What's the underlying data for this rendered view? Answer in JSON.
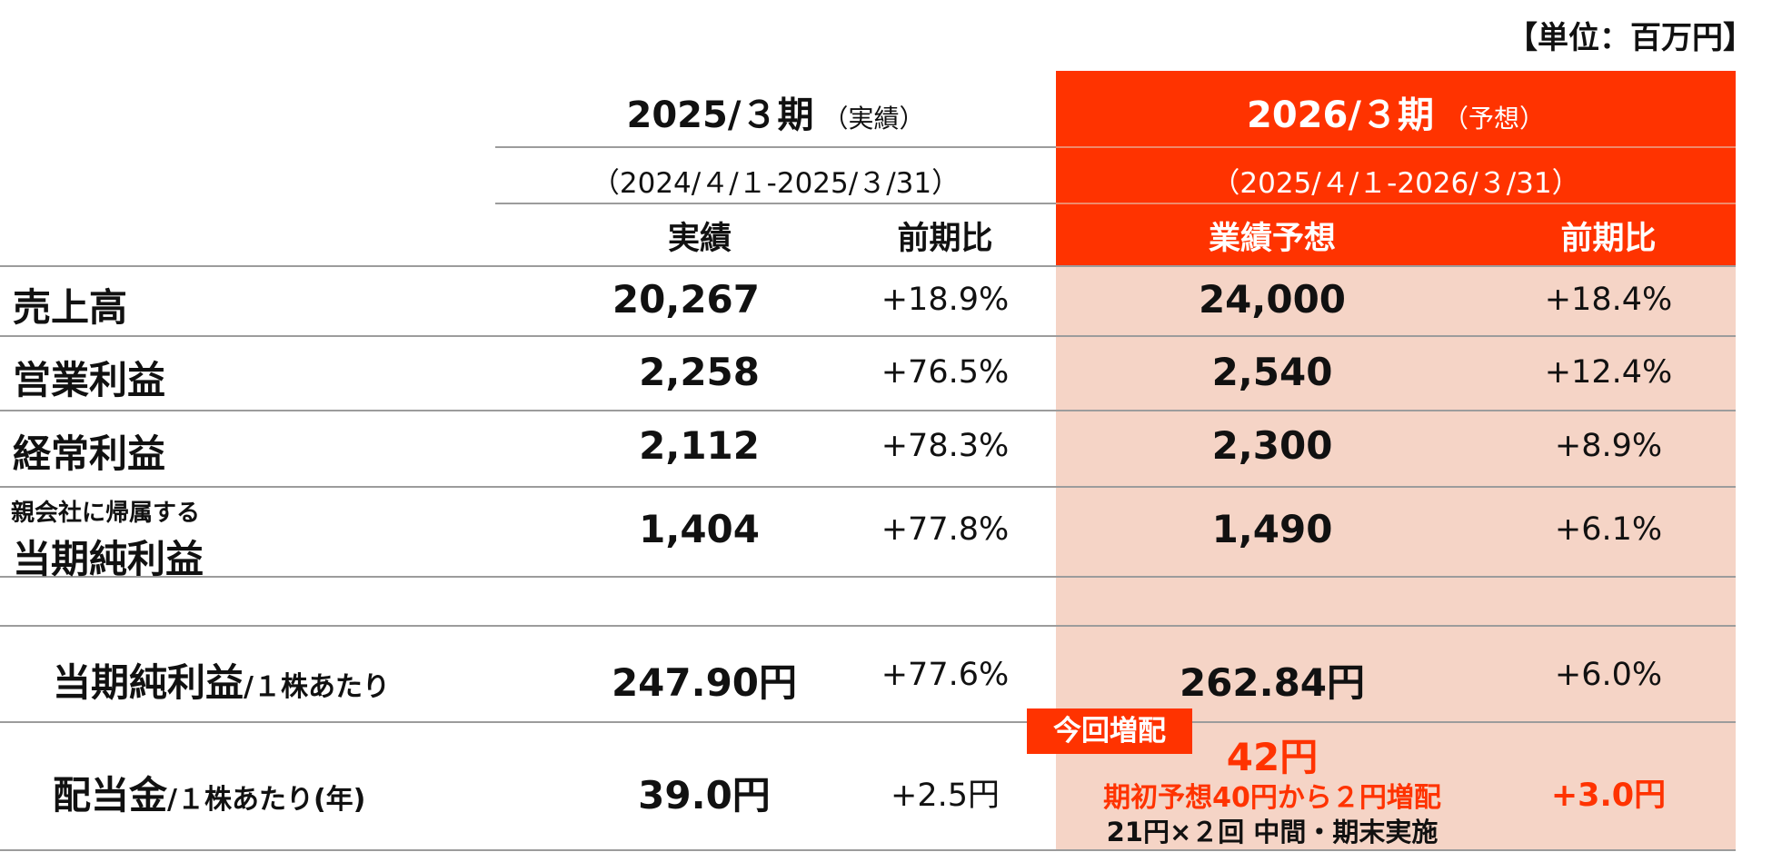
{
  "unit_label": "【単位：百万円】",
  "periods": {
    "prev": {
      "title": "2025/３期",
      "status": "（実績）",
      "range": "（2024/４/１-2025/３/31）",
      "col1": "実績",
      "col2": "前期比"
    },
    "next": {
      "title": "2026/３期",
      "status": "（予想）",
      "range": "（2025/４/１-2026/３/31）",
      "col1": "業績予想",
      "col2": "前期比"
    }
  },
  "rows": [
    {
      "label": "売上高",
      "sub": "",
      "actual": "20,267",
      "actual_yoy": "+18.9%",
      "forecast": "24,000",
      "forecast_yoy": "+18.4%"
    },
    {
      "label": "営業利益",
      "sub": "",
      "actual": "2,258",
      "actual_yoy": "+76.5%",
      "forecast": "2,540",
      "forecast_yoy": "+12.4%"
    },
    {
      "label": "経常利益",
      "sub": "",
      "actual": "2,112",
      "actual_yoy": "+78.3%",
      "forecast": "2,300",
      "forecast_yoy": "+8.9%"
    },
    {
      "label": "当期純利益",
      "sub": "親会社に帰属する",
      "actual": "1,404",
      "actual_yoy": "+77.8%",
      "forecast": "1,490",
      "forecast_yoy": "+6.1%"
    }
  ],
  "eps": {
    "label": "当期純利益",
    "suffix": "/１株あたり",
    "actual": "247.90円",
    "actual_yoy": "+77.6%",
    "forecast": "262.84円",
    "forecast_yoy": "+6.0%"
  },
  "dividend": {
    "label": "配当金",
    "suffix": "/１株あたり(年)",
    "actual": "39.0円",
    "actual_yoy": "+2.5円",
    "tag": "今回増配",
    "forecast": "42円",
    "note1": "期初予想40円から２円増配",
    "note2": "21円×２回 中間・期末実施",
    "forecast_yoy": "+3.0円"
  },
  "colors": {
    "accent": "#ff3300",
    "highlight": "#f5d4c6"
  }
}
